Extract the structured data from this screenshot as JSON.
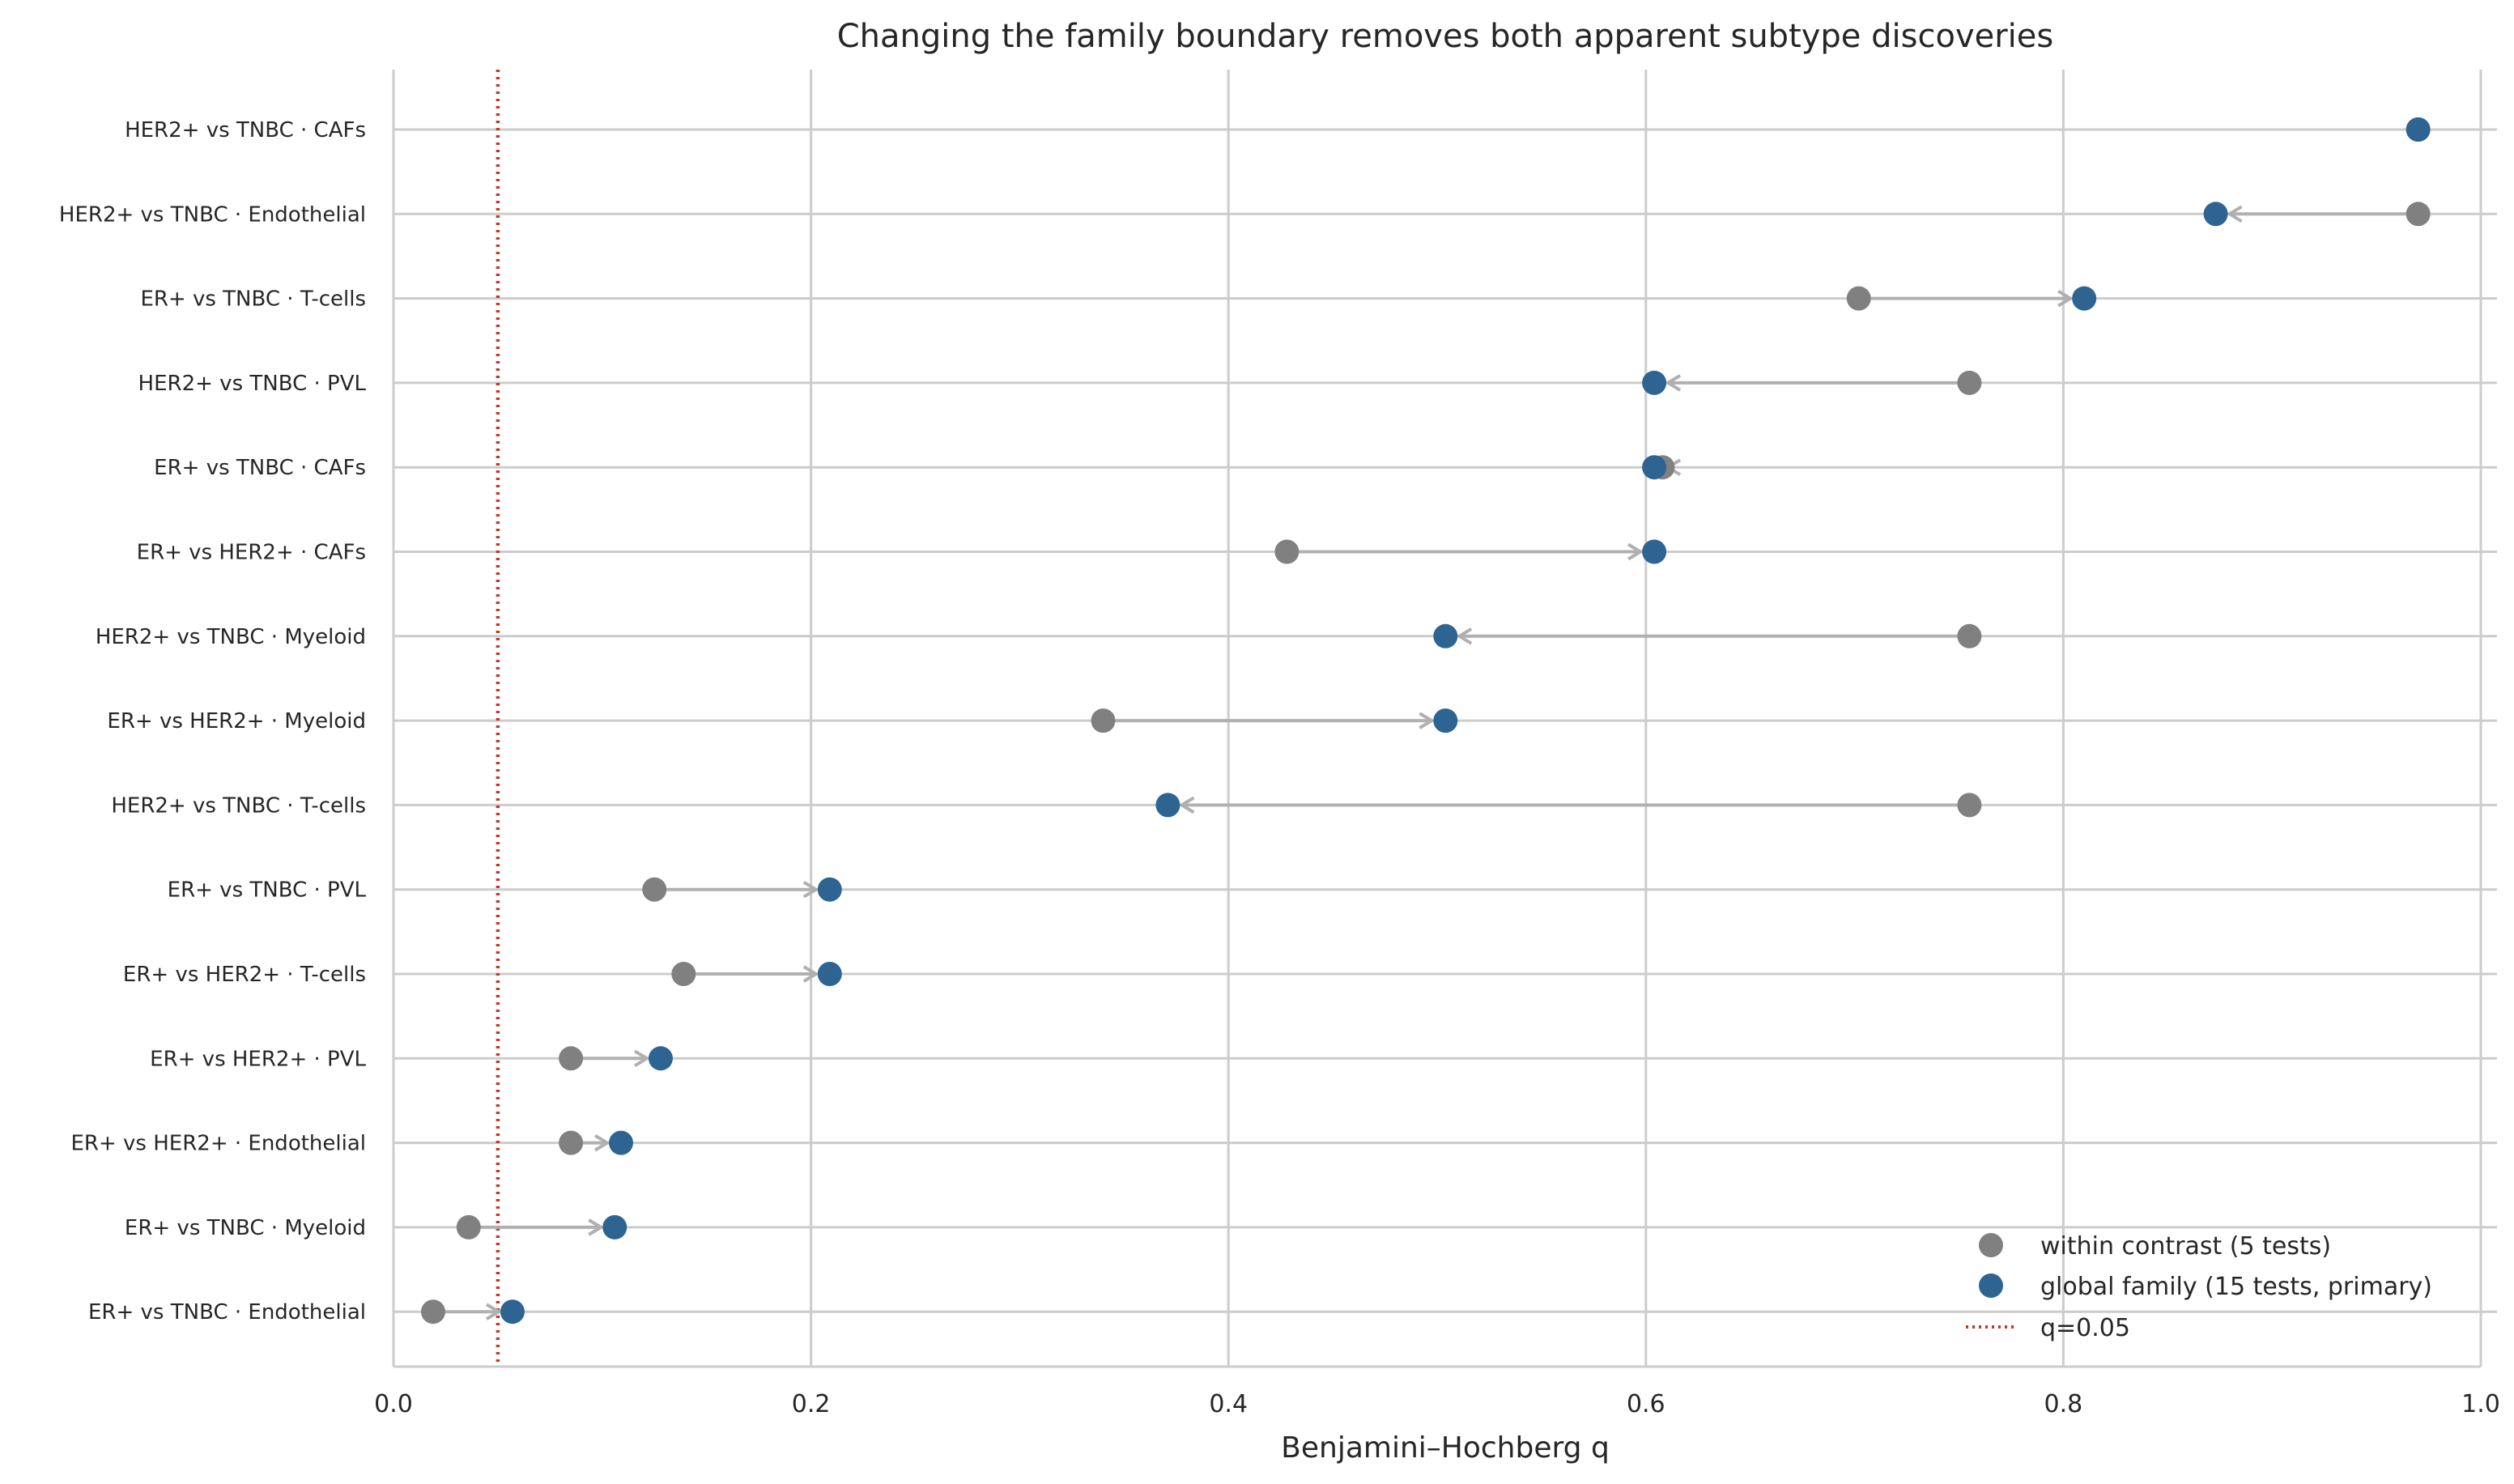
{
  "chart_data": {
    "type": "dot-arrow",
    "title": "Changing the family boundary removes both apparent subtype discoveries",
    "xlabel": "Benjamini–Hochberg q",
    "ylabel": "",
    "xlim": [
      0,
      1
    ],
    "xticks": [
      "0.0",
      "0.2",
      "0.4",
      "0.6",
      "0.8",
      "1.0"
    ],
    "xtick_values": [
      0,
      0.2,
      0.4,
      0.6,
      0.8,
      1.0
    ],
    "grid": true,
    "legend_position": "bottom-right",
    "threshold": {
      "value": 0.05,
      "label": "q=0.05",
      "color": "#c0392b"
    },
    "series": [
      {
        "name": "within contrast (5 tests)",
        "color": "#808080"
      },
      {
        "name": "global family (15 tests, primary)",
        "color": "#2e6491"
      }
    ],
    "arrow_color": "#b0b0b0",
    "categories": [
      "HER2+ vs TNBC · CAFs",
      "HER2+ vs TNBC · Endothelial",
      "ER+ vs TNBC · T-cells",
      "HER2+ vs TNBC · PVL",
      "ER+ vs TNBC · CAFs",
      "ER+ vs HER2+ · CAFs",
      "HER2+ vs TNBC · Myeloid",
      "ER+ vs HER2+ · Myeloid",
      "HER2+ vs TNBC · T-cells",
      "ER+ vs TNBC · PVL",
      "ER+ vs HER2+ · T-cells",
      "ER+ vs HER2+ · PVL",
      "ER+ vs HER2+ · Endothelial",
      "ER+ vs TNBC · Myeloid",
      "ER+ vs TNBC · Endothelial"
    ],
    "within": [
      0.97,
      0.97,
      0.702,
      0.755,
      0.608,
      0.428,
      0.755,
      0.34,
      0.755,
      0.125,
      0.139,
      0.085,
      0.085,
      0.036,
      0.019
    ],
    "global": [
      0.97,
      0.873,
      0.81,
      0.604,
      0.604,
      0.604,
      0.504,
      0.504,
      0.371,
      0.209,
      0.209,
      0.128,
      0.109,
      0.106,
      0.057
    ]
  }
}
